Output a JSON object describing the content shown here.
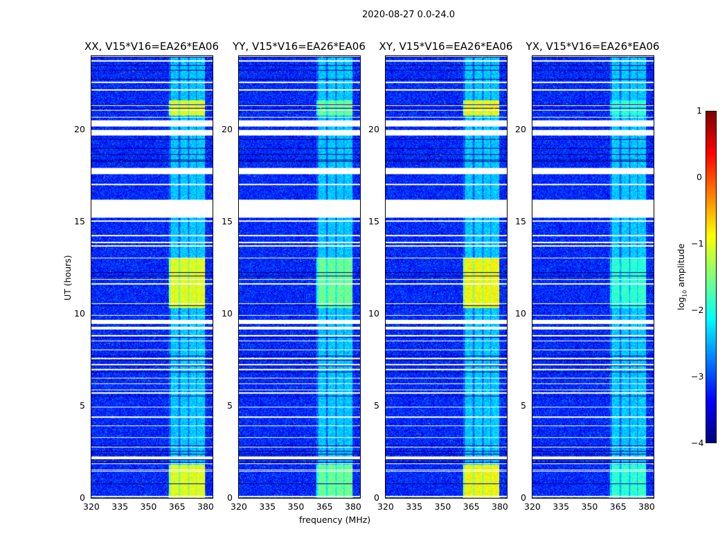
{
  "suptitle": "2020-08-27 0.0-24.0",
  "chart_data": {
    "type": "heatmap",
    "title": "2020-08-27 0.0-24.0",
    "xlabel": "frequency (MHz)",
    "ylabel": "UT (hours)",
    "xlim": [
      320,
      384
    ],
    "ylim": [
      0,
      24
    ],
    "xticks": [
      "320",
      "335",
      "350",
      "365",
      "380"
    ],
    "yticks": [
      "0",
      "5",
      "10",
      "15",
      "20"
    ],
    "panels": [
      {
        "title": "XX, V15*V16=EA26*EA06",
        "band_level": -1.0
      },
      {
        "title": "YY, V15*V16=EA26*EA06",
        "band_level": -1.6
      },
      {
        "title": "XY, V15*V16=EA26*EA06",
        "band_level": -0.9
      },
      {
        "title": "YX, V15*V16=EA26*EA06",
        "band_level": -1.9
      }
    ],
    "rfi_band_mhz": [
      361,
      380
    ],
    "bright_intervals_hours": [
      [
        0,
        1.8
      ],
      [
        10.3,
        13
      ],
      [
        20.8,
        21.6
      ]
    ],
    "flagged_intervals_hours": [
      [
        15.3,
        16.2
      ],
      [
        9.45,
        9.65
      ],
      [
        17.6,
        17.9
      ],
      [
        19.7,
        20.0
      ],
      [
        20.2,
        20.5
      ]
    ],
    "background_level": -3.2,
    "colorbar": {
      "label": "log10 amplitude",
      "range": [
        -4,
        1
      ],
      "ticks": [
        "1",
        "0",
        "−1",
        "−2",
        "−3",
        "−4"
      ]
    }
  }
}
